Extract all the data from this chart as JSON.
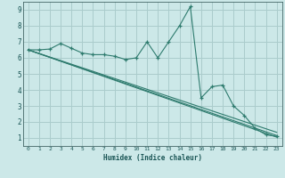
{
  "xlabel": "Humidex (Indice chaleur)",
  "bg_color": "#cce8e8",
  "grid_color": "#aacccc",
  "line_color": "#2e7b6e",
  "xlim": [
    -0.5,
    23.5
  ],
  "ylim": [
    0.5,
    9.5
  ],
  "xticks": [
    0,
    1,
    2,
    3,
    4,
    5,
    6,
    7,
    8,
    9,
    10,
    11,
    12,
    13,
    14,
    15,
    16,
    17,
    18,
    19,
    20,
    21,
    22,
    23
  ],
  "yticks": [
    1,
    2,
    3,
    4,
    5,
    6,
    7,
    8,
    9
  ],
  "main_x": [
    0,
    1,
    2,
    3,
    4,
    5,
    6,
    7,
    8,
    9,
    10,
    11,
    12,
    13,
    14,
    15,
    16,
    17,
    18,
    19,
    20,
    21,
    22,
    23
  ],
  "main_y": [
    6.5,
    6.5,
    6.55,
    6.9,
    6.6,
    6.3,
    6.2,
    6.2,
    6.1,
    5.9,
    6.0,
    7.0,
    6.0,
    7.0,
    8.0,
    9.2,
    3.5,
    4.2,
    4.3,
    3.0,
    2.4,
    1.6,
    1.2,
    1.1
  ],
  "line2_x": [
    0,
    23
  ],
  "line2_y": [
    6.5,
    1.05
  ],
  "line3_x": [
    0,
    23
  ],
  "line3_y": [
    6.5,
    1.15
  ],
  "line4_x": [
    0,
    23
  ],
  "line4_y": [
    6.5,
    1.35
  ]
}
